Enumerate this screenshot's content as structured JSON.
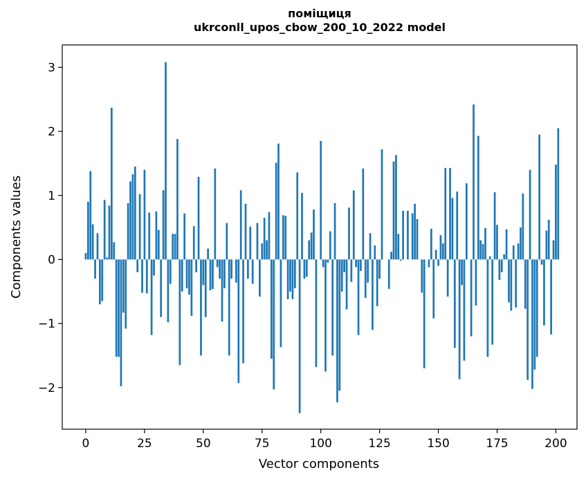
{
  "chart_data": {
    "type": "bar",
    "title_line1": "поміщиця",
    "title_line2": "ukrconll_upos_cbow_200_10_2022 model",
    "xlabel": "Vector components",
    "ylabel": "Components values",
    "xlim": [
      -10,
      209
    ],
    "ylim": [
      -2.65,
      3.35
    ],
    "xticks": [
      0,
      25,
      50,
      75,
      100,
      125,
      150,
      175,
      200
    ],
    "yticks": [
      -2,
      -1,
      0,
      1,
      2,
      3
    ],
    "ytick_labels": [
      "−2",
      "−1",
      "0",
      "1",
      "2",
      "3"
    ],
    "bar_color": "#1f77b4",
    "values": [
      0.1,
      0.9,
      1.38,
      0.55,
      -0.3,
      0.41,
      -0.7,
      -0.65,
      0.93,
      0.03,
      0.84,
      2.37,
      0.27,
      -1.52,
      -1.52,
      -1.98,
      -0.83,
      -1.08,
      0.88,
      1.22,
      1.33,
      1.45,
      -0.2,
      1.02,
      -0.52,
      1.4,
      -0.53,
      0.73,
      -1.18,
      -0.25,
      0.75,
      0.46,
      -0.9,
      1.08,
      3.08,
      -0.98,
      -0.38,
      0.4,
      0.4,
      1.88,
      -1.65,
      -0.5,
      0.72,
      -0.45,
      -0.55,
      -0.88,
      0.52,
      -0.2,
      1.29,
      -1.5,
      -0.4,
      -0.9,
      0.17,
      -0.48,
      -0.46,
      1.42,
      -0.12,
      -0.3,
      -0.97,
      -0.45,
      0.57,
      -1.5,
      -0.3,
      0.0,
      -0.36,
      -1.93,
      1.08,
      -1.62,
      0.87,
      -0.3,
      0.51,
      -0.38,
      0.0,
      0.57,
      -0.58,
      0.25,
      0.65,
      0.3,
      0.74,
      -1.55,
      -2.03,
      1.51,
      1.81,
      -1.37,
      0.69,
      0.68,
      -0.62,
      -0.5,
      -0.62,
      -0.45,
      1.36,
      -2.4,
      1.04,
      -0.3,
      -0.27,
      0.3,
      0.42,
      0.78,
      -1.68,
      0.0,
      1.85,
      -0.12,
      -1.75,
      -0.05,
      0.44,
      -1.5,
      0.88,
      -2.23,
      -2.05,
      -0.5,
      -0.2,
      -0.78,
      0.81,
      -0.35,
      1.08,
      -0.12,
      -1.18,
      -0.18,
      1.42,
      -0.6,
      -0.36,
      0.41,
      -1.1,
      0.22,
      -0.73,
      -0.3,
      1.72,
      0.0,
      0.0,
      -0.46,
      0.12,
      1.53,
      1.63,
      0.4,
      -0.02,
      0.76,
      0.0,
      0.76,
      0.0,
      0.72,
      0.87,
      0.63,
      0.0,
      -0.52,
      -1.7,
      0.0,
      -0.12,
      0.48,
      -0.92,
      0.15,
      -0.1,
      0.38,
      0.25,
      1.43,
      -0.58,
      1.43,
      0.96,
      -1.38,
      1.06,
      -1.87,
      -0.4,
      -1.58,
      1.19,
      0.0,
      -1.2,
      2.42,
      -0.72,
      1.93,
      0.3,
      0.24,
      0.49,
      -1.52,
      0.05,
      -1.33,
      1.05,
      0.54,
      -0.32,
      -0.2,
      0.08,
      0.47,
      -0.67,
      -0.8,
      0.22,
      -0.75,
      0.25,
      0.5,
      1.03,
      -0.77,
      -1.88,
      1.4,
      -2.02,
      -1.72,
      -1.52,
      1.95,
      -0.08,
      -1.03,
      0.45,
      0.62,
      -1.17,
      0.3,
      1.48,
      2.05
    ]
  }
}
